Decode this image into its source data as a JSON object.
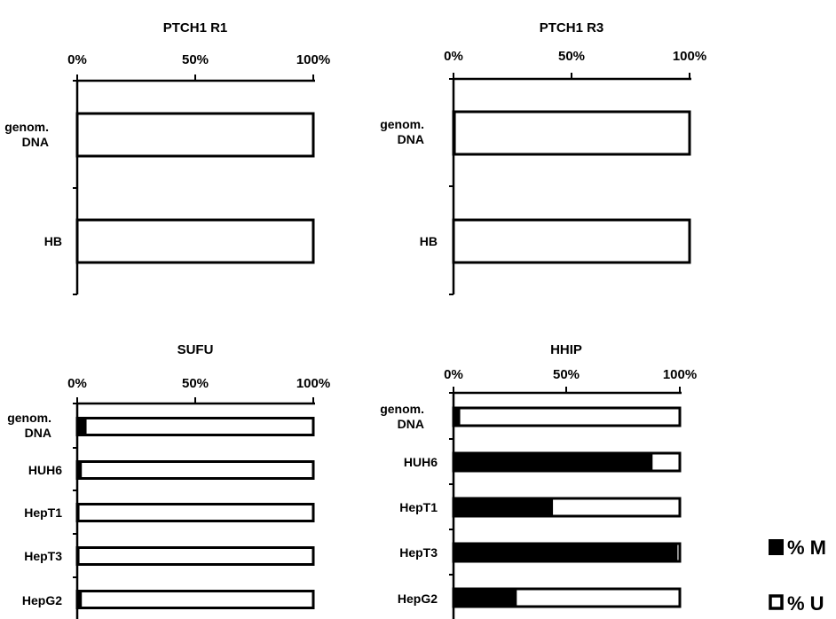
{
  "chart_data": [
    {
      "type": "bar",
      "orientation": "horizontal",
      "stacked": true,
      "title": "PTCH1 R1",
      "x_ticks": [
        "0%",
        "50%",
        "100%"
      ],
      "xlim": [
        0,
        100
      ],
      "categories": [
        [
          "genom.",
          "DNA"
        ],
        [
          "HB"
        ]
      ],
      "series": [
        {
          "name": "% M",
          "color": "#000000",
          "values": [
            0,
            0
          ]
        },
        {
          "name": "% U",
          "color": "#ffffff",
          "values": [
            100,
            100
          ]
        }
      ]
    },
    {
      "type": "bar",
      "orientation": "horizontal",
      "stacked": true,
      "title": "PTCH1 R3",
      "x_ticks": [
        "0%",
        "50%",
        "100%"
      ],
      "xlim": [
        0,
        100
      ],
      "categories": [
        [
          "genom.",
          "DNA"
        ],
        [
          "HB"
        ]
      ],
      "series": [
        {
          "name": "% M",
          "color": "#000000",
          "values": [
            1,
            0
          ]
        },
        {
          "name": "% U",
          "color": "#ffffff",
          "values": [
            99,
            100
          ]
        }
      ]
    },
    {
      "type": "bar",
      "orientation": "horizontal",
      "stacked": true,
      "title": "SUFU",
      "x_ticks": [
        "0%",
        "50%",
        "100%"
      ],
      "xlim": [
        0,
        100
      ],
      "categories": [
        [
          "genom.",
          "DNA"
        ],
        [
          "HUH6"
        ],
        [
          "HepT1"
        ],
        [
          "HepT3"
        ],
        [
          "HepG2"
        ]
      ],
      "series": [
        {
          "name": "% M",
          "color": "#000000",
          "values": [
            4,
            2,
            1,
            1,
            2
          ]
        },
        {
          "name": "% U",
          "color": "#ffffff",
          "values": [
            96,
            98,
            99,
            99,
            98
          ]
        }
      ]
    },
    {
      "type": "bar",
      "orientation": "horizontal",
      "stacked": true,
      "title": "HHIP",
      "x_ticks": [
        "0%",
        "50%",
        "100%"
      ],
      "xlim": [
        0,
        100
      ],
      "categories": [
        [
          "genom.",
          "DNA"
        ],
        [
          "HUH6"
        ],
        [
          "HepT1"
        ],
        [
          "HepT3"
        ],
        [
          "HepG2"
        ]
      ],
      "series": [
        {
          "name": "% M",
          "color": "#000000",
          "values": [
            3,
            88,
            44,
            99,
            28
          ]
        },
        {
          "name": "% U",
          "color": "#ffffff",
          "values": [
            97,
            12,
            56,
            1,
            72
          ]
        }
      ]
    }
  ],
  "legend": [
    {
      "label": "% M",
      "color": "#000000"
    },
    {
      "label": "% U",
      "color": "#ffffff"
    }
  ]
}
